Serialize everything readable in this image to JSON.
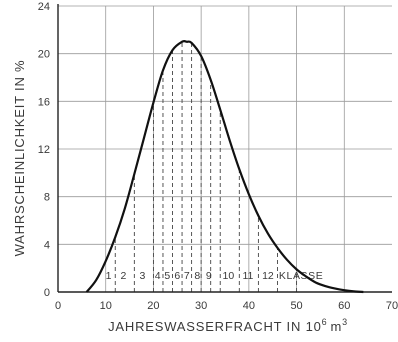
{
  "chart_data": {
    "type": "line",
    "title": "",
    "xlabel_prefix": "JAHRESWASSERFRACHT IN 10",
    "xlabel_exp": "6",
    "xlabel_unit": "m",
    "xlabel_unit_exp": "3",
    "ylabel": "WAHRSCHEINLICHKEIT IN %",
    "xlim": [
      0,
      70
    ],
    "ylim": [
      0,
      24
    ],
    "x_ticks": [
      "0",
      "10",
      "20",
      "30",
      "40",
      "50",
      "60",
      "70"
    ],
    "y_ticks": [
      "0",
      "4",
      "8",
      "12",
      "16",
      "20",
      "24"
    ],
    "grid": true,
    "series": [
      {
        "x": [
          6,
          8,
          10,
          12,
          14,
          16,
          18,
          20,
          22,
          24,
          26,
          27,
          28,
          30,
          32,
          34,
          36,
          38,
          40,
          42,
          44,
          46,
          48,
          50,
          52,
          54,
          56,
          58,
          60,
          62,
          64
        ],
        "y": [
          0,
          1.0,
          2.6,
          4.6,
          7.0,
          9.9,
          12.9,
          15.9,
          18.6,
          20.3,
          21.0,
          21.0,
          20.9,
          19.8,
          17.8,
          15.3,
          12.7,
          10.3,
          8.2,
          6.4,
          4.9,
          3.7,
          2.7,
          1.9,
          1.3,
          0.8,
          0.5,
          0.3,
          0.15,
          0.05,
          0
        ]
      }
    ],
    "class_boundaries": [
      12,
      16,
      20,
      22,
      24,
      26,
      28,
      30,
      32,
      34,
      38,
      42,
      46,
      50
    ],
    "class_labels": [
      "1",
      "2",
      "3",
      "4",
      "5",
      "6",
      "7",
      "8",
      "9",
      "10",
      "11",
      "12"
    ],
    "class_label_x": [
      10.6,
      13.7,
      17.7,
      20.9,
      22.9,
      25.0,
      27.0,
      29.2,
      31.6,
      35.7,
      39.8,
      44.0
    ],
    "class_word": "KLASSE"
  }
}
